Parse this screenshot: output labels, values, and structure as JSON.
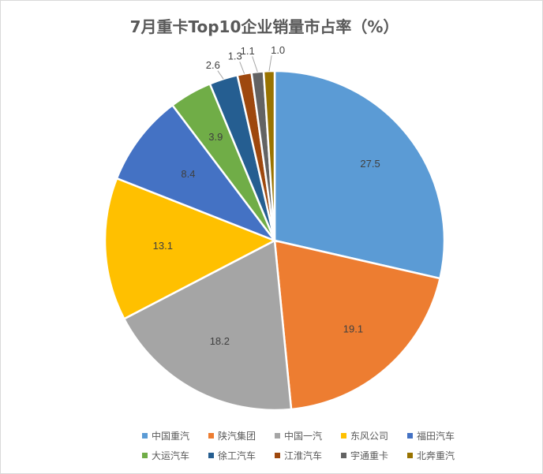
{
  "title": "7月重卡Top10企业销量市占率（%）",
  "chart_data": {
    "type": "pie",
    "title": "7月重卡Top10企业销量市占率（%）",
    "legend_position": "bottom",
    "start_angle": "12-o'clock, clockwise",
    "slices": [
      {
        "label": "中国重汽",
        "value": 27.5,
        "value_label": "27.5",
        "color": "#5b9bd5"
      },
      {
        "label": "陕汽集团",
        "value": 19.1,
        "value_label": "19.1",
        "color": "#ed7d31"
      },
      {
        "label": "中国一汽",
        "value": 18.2,
        "value_label": "18.2",
        "color": "#a5a5a5"
      },
      {
        "label": "东风公司",
        "value": 13.1,
        "value_label": "13.1",
        "color": "#ffc000"
      },
      {
        "label": "福田汽车",
        "value": 8.4,
        "value_label": "8.4",
        "color": "#4472c4"
      },
      {
        "label": "大运汽车",
        "value": 3.9,
        "value_label": "3.9",
        "color": "#70ad47"
      },
      {
        "label": "徐工汽车",
        "value": 2.6,
        "value_label": "2.6",
        "color": "#255e91"
      },
      {
        "label": "江淮汽车",
        "value": 1.3,
        "value_label": "1.3",
        "color": "#9e480e"
      },
      {
        "label": "宇通重卡",
        "value": 1.1,
        "value_label": "1.1",
        "color": "#636363"
      },
      {
        "label": "北奔重汽",
        "value": 1.0,
        "value_label": "1.0",
        "color": "#997300"
      }
    ]
  }
}
